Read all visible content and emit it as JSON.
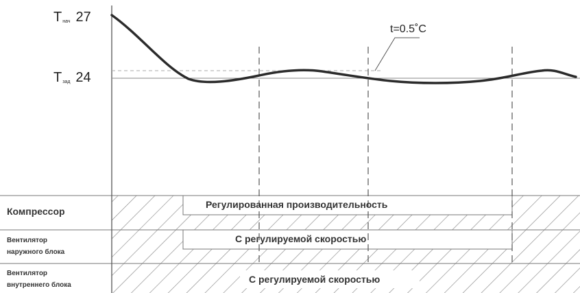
{
  "chart": {
    "y_labels": [
      {
        "prefix": "T",
        "sub": "нач",
        "value": "27"
      },
      {
        "prefix": "T",
        "sub": "зад",
        "value": "24"
      }
    ],
    "delta_label": "t=0.5˚C"
  },
  "rows": [
    {
      "label_line1": "Компрессор",
      "label_line2": "",
      "bar_text": "Регулированная производительность"
    },
    {
      "label_line1": "Вентилятор",
      "label_line2": "наружного блока",
      "bar_text": "С регулируемой скоростью"
    },
    {
      "label_line1": "Вентилятор",
      "label_line2": "внутреннего блока",
      "bar_text": "С регулируемой скоростью"
    }
  ],
  "colors": {
    "curve": "#2b2b2b",
    "lines": "#777777",
    "dashed": "#555555",
    "hatch": "#8a8a8a",
    "ref_dashed": "#aaaaaa"
  }
}
